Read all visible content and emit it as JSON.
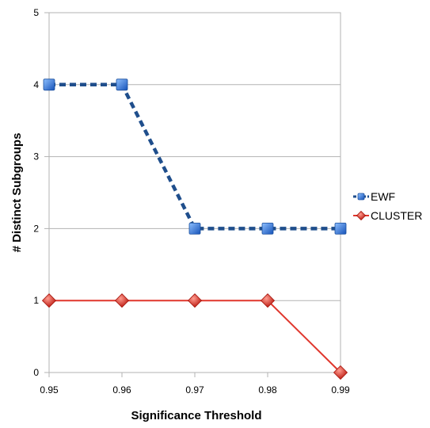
{
  "chart_data": {
    "type": "line",
    "title": "",
    "xlabel": "Significance Threshold",
    "ylabel": "# Distinct Subgroups",
    "x": [
      0.95,
      0.96,
      0.97,
      0.98,
      0.99
    ],
    "x_tick_labels": [
      "0.95",
      "0.96",
      "0.97",
      "0.98",
      "0.99"
    ],
    "y_tick_labels": [
      "0",
      "1",
      "2",
      "3",
      "4",
      "5"
    ],
    "ylim": [
      0,
      5
    ],
    "grid": "horizontal",
    "legend_position": "right",
    "series": [
      {
        "name": "EWF",
        "values": [
          4,
          4,
          2,
          2,
          2
        ],
        "color": "#1f4e8c",
        "marker": "square",
        "line_style": "dashed"
      },
      {
        "name": "CLUSTER",
        "values": [
          1,
          1,
          1,
          1,
          0
        ],
        "color": "#e0362c",
        "marker": "diamond",
        "line_style": "solid"
      }
    ]
  }
}
